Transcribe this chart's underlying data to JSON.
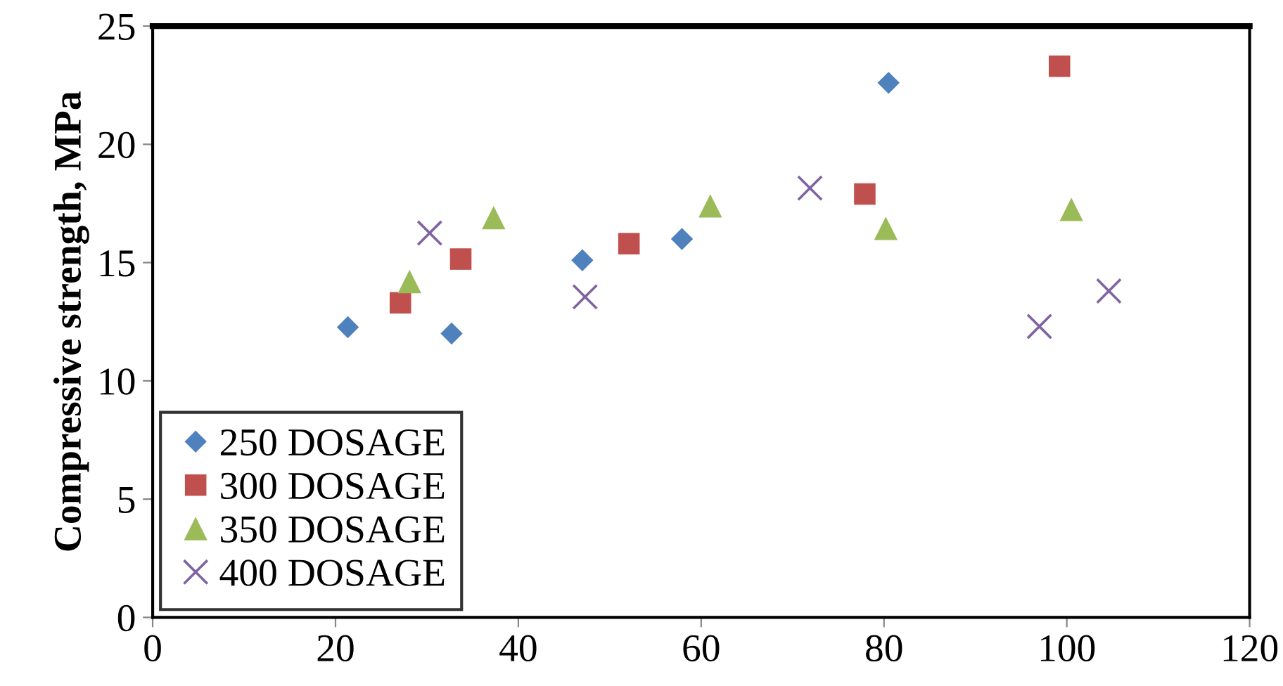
{
  "chart_data": {
    "type": "scatter",
    "ylabel": "Compressive strength, MPa",
    "xlim": [
      0,
      120
    ],
    "xticks": [
      0,
      20,
      40,
      60,
      80,
      100,
      120
    ],
    "ylim": [
      0,
      25
    ],
    "yticks": [
      0,
      5,
      10,
      15,
      20,
      25
    ],
    "grid": false,
    "legend": "bottom left",
    "series": [
      {
        "name": "250 DOSAGE",
        "color": "#4f81bd",
        "marker": "diamond",
        "x": [
          21.35,
          32.7,
          47.0,
          57.9,
          80.5
        ],
        "values": [
          12.27,
          12.0,
          15.1,
          16.0,
          22.6
        ]
      },
      {
        "name": "300 DOSAGE",
        "color": "#c0504d",
        "marker": "square",
        "x": [
          27.1,
          33.7,
          52.1,
          77.9,
          99.2
        ],
        "values": [
          13.3,
          15.15,
          15.8,
          17.9,
          23.3
        ]
      },
      {
        "name": "350 DOSAGE",
        "color": "#9bbb59",
        "marker": "triangle",
        "x": [
          28.1,
          37.3,
          61.0,
          80.2,
          100.5
        ],
        "values": [
          14.2,
          16.9,
          17.4,
          16.45,
          17.25
        ]
      },
      {
        "name": "400 DOSAGE",
        "color": "#8064a2",
        "marker": "cross",
        "x": [
          30.3,
          47.3,
          71.9,
          97.0,
          104.6
        ],
        "values": [
          16.25,
          13.55,
          18.15,
          12.3,
          13.8
        ]
      }
    ]
  }
}
